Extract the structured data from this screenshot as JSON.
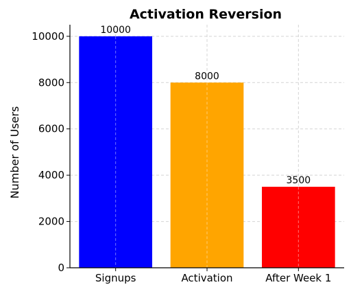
{
  "chart_data": {
    "type": "bar",
    "title": "Activation Reversion",
    "xlabel": "",
    "ylabel": "Number of Users",
    "categories": [
      "Signups",
      "Activation",
      "After Week 1"
    ],
    "values": [
      10000,
      8000,
      3500
    ],
    "data_labels": [
      "10000",
      "8000",
      "3500"
    ],
    "colors": [
      "#0000ff",
      "#ffa500",
      "#ff0000"
    ],
    "ylim": [
      0,
      10500
    ],
    "yticks": [
      0,
      2000,
      4000,
      6000,
      8000,
      10000
    ],
    "grid": true
  }
}
